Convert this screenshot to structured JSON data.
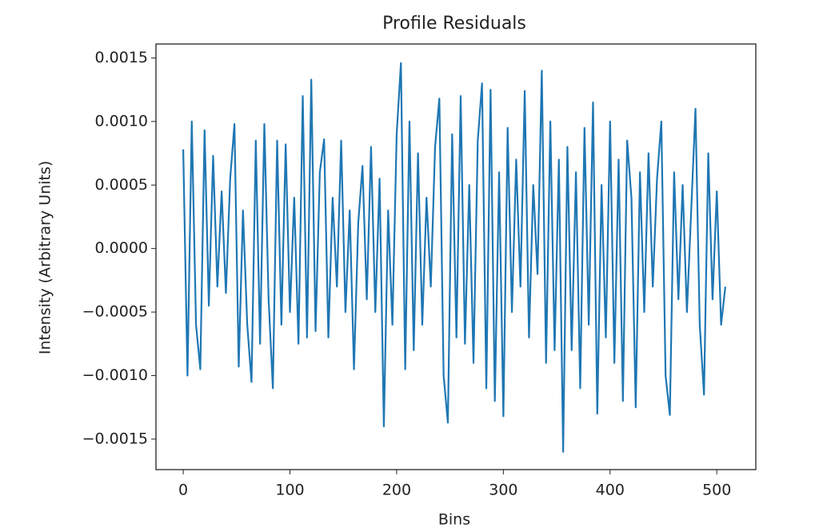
{
  "chart_data": {
    "type": "line",
    "title": "Profile Residuals",
    "x_label": "Bins",
    "y_label": "Intensity (Arbitrary Units)",
    "x": [
      0,
      4,
      8,
      12,
      16,
      20,
      24,
      28,
      32,
      36,
      40,
      44,
      48,
      52,
      56,
      60,
      64,
      68,
      72,
      76,
      80,
      84,
      88,
      92,
      96,
      100,
      104,
      108,
      112,
      116,
      120,
      124,
      128,
      132,
      136,
      140,
      144,
      148,
      152,
      156,
      160,
      164,
      168,
      172,
      176,
      180,
      184,
      188,
      192,
      196,
      200,
      204,
      208,
      212,
      216,
      220,
      224,
      228,
      232,
      236,
      240,
      244,
      248,
      252,
      256,
      260,
      264,
      268,
      272,
      276,
      280,
      284,
      288,
      292,
      296,
      300,
      304,
      308,
      312,
      316,
      320,
      324,
      328,
      332,
      336,
      340,
      344,
      348,
      352,
      356,
      360,
      364,
      368,
      372,
      376,
      380,
      384,
      388,
      392,
      396,
      400,
      404,
      408,
      412,
      416,
      420,
      424,
      428,
      432,
      436,
      440,
      444,
      448,
      452,
      456,
      460,
      464,
      468,
      472,
      476,
      480,
      484,
      488,
      492,
      496,
      500,
      504,
      508
    ],
    "series": [
      {
        "name": "residuals",
        "color": "#1f77b4",
        "values": [
          0.00078,
          -0.001,
          0.001,
          -0.0006,
          -0.00095,
          0.00093,
          -0.00045,
          0.00073,
          -0.0003,
          0.00045,
          -0.00035,
          0.00055,
          0.00098,
          -0.00093,
          0.0003,
          -0.0006,
          -0.00105,
          0.00085,
          -0.00075,
          0.00098,
          -0.0004,
          -0.0011,
          0.00085,
          -0.0006,
          0.00082,
          -0.0005,
          0.0004,
          -0.00075,
          0.0012,
          -0.0007,
          0.00133,
          -0.00065,
          0.0006,
          0.00086,
          -0.0007,
          0.0004,
          -0.0003,
          0.00085,
          -0.0005,
          0.0003,
          -0.00095,
          0.0002,
          0.00065,
          -0.0004,
          0.0008,
          -0.0005,
          0.00055,
          -0.0014,
          0.0003,
          -0.0006,
          0.0009,
          0.00146,
          -0.00095,
          0.001,
          -0.0008,
          0.00075,
          -0.0006,
          0.0004,
          -0.0003,
          0.0008,
          0.00118,
          -0.001,
          -0.00137,
          0.0009,
          -0.0007,
          0.0012,
          -0.00075,
          0.0005,
          -0.0009,
          0.00085,
          0.0013,
          -0.0011,
          0.00125,
          -0.0012,
          0.0006,
          -0.00132,
          0.00095,
          -0.0005,
          0.0007,
          -0.0003,
          0.00124,
          -0.0007,
          0.0005,
          -0.0002,
          0.0014,
          -0.0009,
          0.001,
          -0.0008,
          0.0007,
          -0.0016,
          0.0008,
          -0.0008,
          0.0006,
          -0.0011,
          0.00095,
          -0.0006,
          0.00115,
          -0.0013,
          0.0005,
          -0.0007,
          0.001,
          -0.0009,
          0.0007,
          -0.0012,
          0.00085,
          0.0004,
          -0.00125,
          0.0006,
          -0.0005,
          0.00075,
          -0.0003,
          0.00055,
          0.001,
          -0.001,
          -0.00131,
          0.0006,
          -0.0004,
          0.0005,
          -0.0005,
          0.0003,
          0.0011,
          -0.0006,
          -0.00115,
          0.00075,
          -0.0004,
          0.00045,
          -0.0006,
          -0.0003
        ]
      }
    ],
    "xlim": [
      -25.55,
      536.55
    ],
    "xticks": [
      0,
      100,
      200,
      300,
      400,
      500
    ],
    "ylim": [
      -0.00174,
      0.00161
    ],
    "yticks": [
      {
        "value": -0.0015,
        "label": "−0.0015"
      },
      {
        "value": -0.001,
        "label": "−0.0010"
      },
      {
        "value": -0.0005,
        "label": "−0.0005"
      },
      {
        "value": 0,
        "label": "0.0000"
      },
      {
        "value": 0.0005,
        "label": "0.0005"
      },
      {
        "value": 0.001,
        "label": "0.0010"
      },
      {
        "value": 0.0015,
        "label": "0.0015"
      }
    ],
    "grid": false
  }
}
